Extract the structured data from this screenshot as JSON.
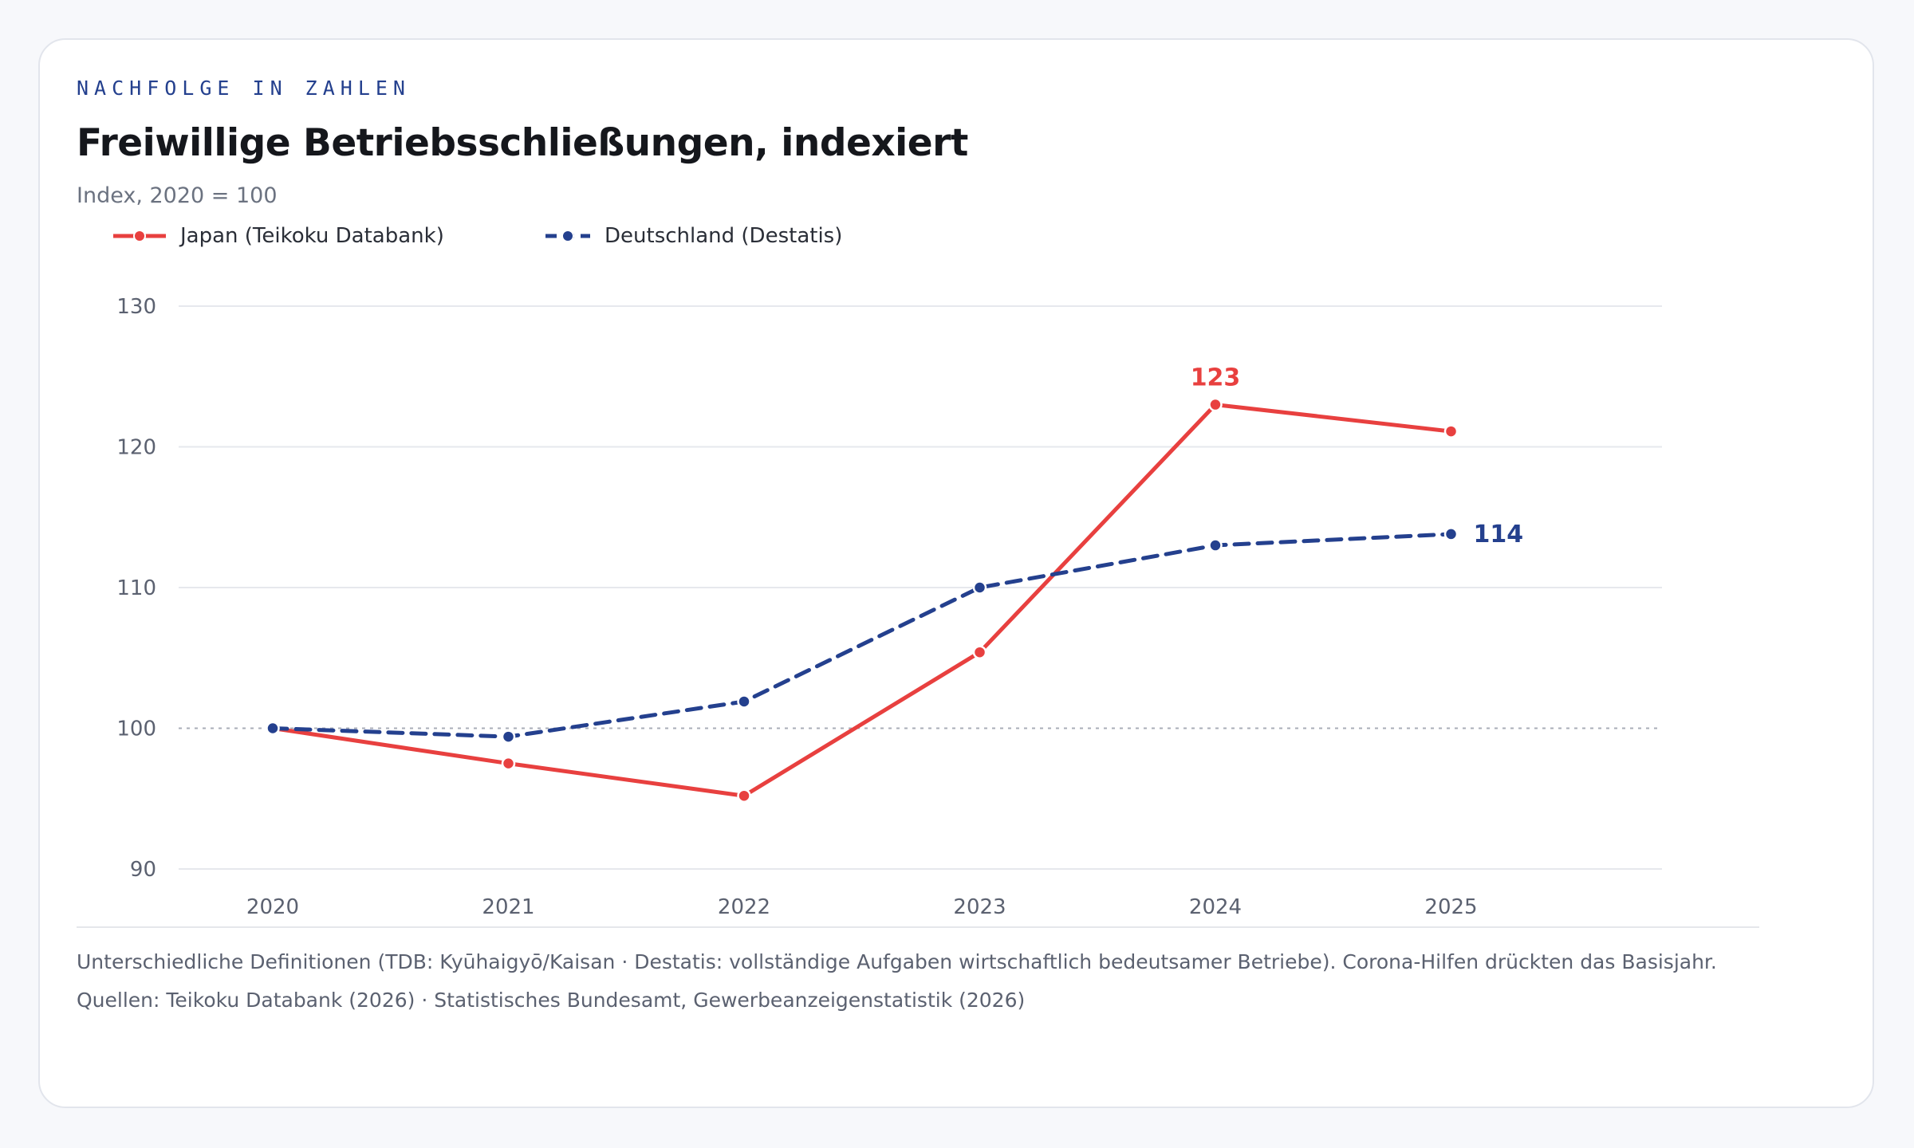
{
  "header": {
    "kicker": "NACHFOLGE IN ZAHLEN",
    "title": "Freiwillige Betriebsschließungen, indexiert",
    "subtitle": "Index, 2020 = 100"
  },
  "legend": [
    {
      "label": "Japan (Teikoku Databank)",
      "color": "#e8403f",
      "style": "solid"
    },
    {
      "label": "Deutschland (Destatis)",
      "color": "#24408e",
      "style": "dashed"
    }
  ],
  "chart_data": {
    "type": "line",
    "categories": [
      "2020",
      "2021",
      "2022",
      "2023",
      "2024",
      "2025"
    ],
    "series": [
      {
        "name": "Japan (Teikoku Databank)",
        "color": "#e8403f",
        "style": "solid",
        "values": [
          100,
          97.5,
          95.2,
          105.4,
          123,
          121.1
        ]
      },
      {
        "name": "Deutschland (Destatis)",
        "color": "#24408e",
        "style": "dashed",
        "values": [
          100,
          99.4,
          101.9,
          110,
          113,
          113.8
        ]
      }
    ],
    "ylim": [
      90,
      130
    ],
    "yticks": [
      90,
      100,
      110,
      120,
      130
    ],
    "reference_line": 100,
    "annotations": [
      {
        "series": 0,
        "index": 4,
        "text": "123"
      },
      {
        "series": 1,
        "index": 5,
        "text": "114"
      }
    ],
    "grid": true,
    "legend_position": "top-left"
  },
  "footer": {
    "note": "Unterschiedliche Definitionen (TDB: Kyūhaigyō/Kaisan · Destatis: vollständige Aufgaben wirtschaftlich bedeutsamer Betriebe). Corona-Hilfen drückten das Basisjahr.",
    "sources": "Quellen: Teikoku Databank (2026) · Statistisches Bundesamt, Gewerbeanzeigenstatistik (2026)"
  }
}
